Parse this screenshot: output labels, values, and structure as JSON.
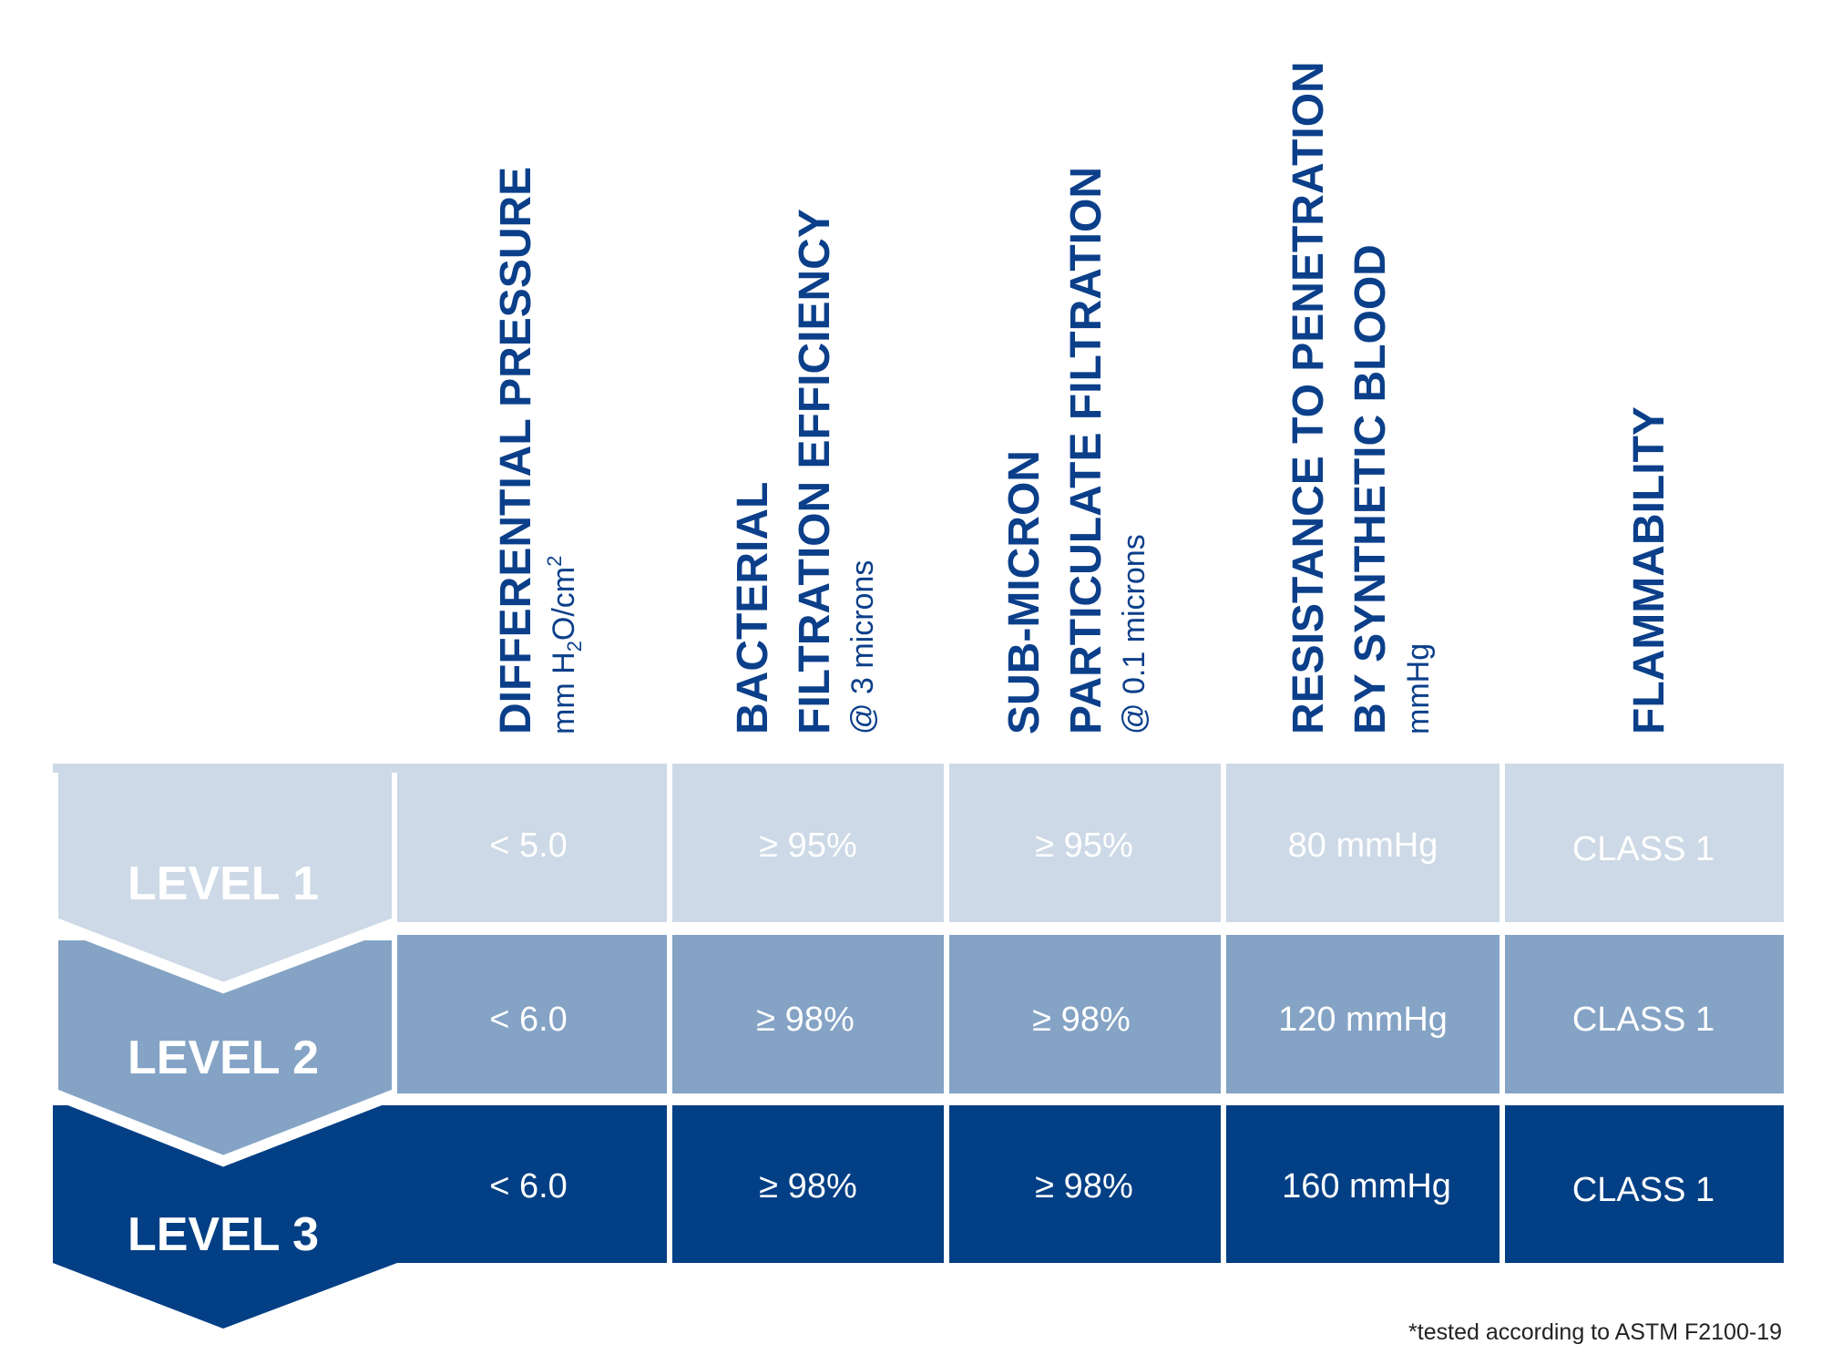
{
  "colors": {
    "level1": "#cdd9e6",
    "level2": "#84a3c5",
    "level3": "#023f85",
    "header_text": "#0b3f8a",
    "cell_text": "#ffffff"
  },
  "columns": [
    {
      "title_lines": [
        "DIFFERENTIAL PRESSURE"
      ],
      "sub_prefix": "mm H",
      "sub_sub": "2",
      "sub_mid": "O/cm",
      "sub_sup": "2"
    },
    {
      "title_lines": [
        "BACTERIAL",
        "FILTRATION EFFICIENCY"
      ],
      "sub": "@ 3 microns"
    },
    {
      "title_lines": [
        "SUB-MICRON",
        "PARTICULATE FILTRATION"
      ],
      "sub": "@ 0.1 microns"
    },
    {
      "title_lines": [
        "RESISTANCE TO PENETRATION",
        "BY SYNTHETIC BLOOD"
      ],
      "sub": "mmHg"
    },
    {
      "title_lines": [
        "FLAMMABILITY"
      ]
    }
  ],
  "levels": [
    {
      "label": "LEVEL 1",
      "values": [
        "< 5.0",
        "≥ 95%",
        "≥ 95%",
        "80 mmHg",
        "CLASS 1"
      ]
    },
    {
      "label": "LEVEL 2",
      "values": [
        "< 6.0",
        "≥ 98%",
        "≥ 98%",
        "120 mmHg",
        "CLASS 1"
      ]
    },
    {
      "label": "LEVEL 3",
      "values": [
        "< 6.0",
        "≥ 98%",
        "≥ 98%",
        "160 mmHg",
        "CLASS 1"
      ]
    }
  ],
  "footnote": "*tested according to ASTM F2100-19"
}
